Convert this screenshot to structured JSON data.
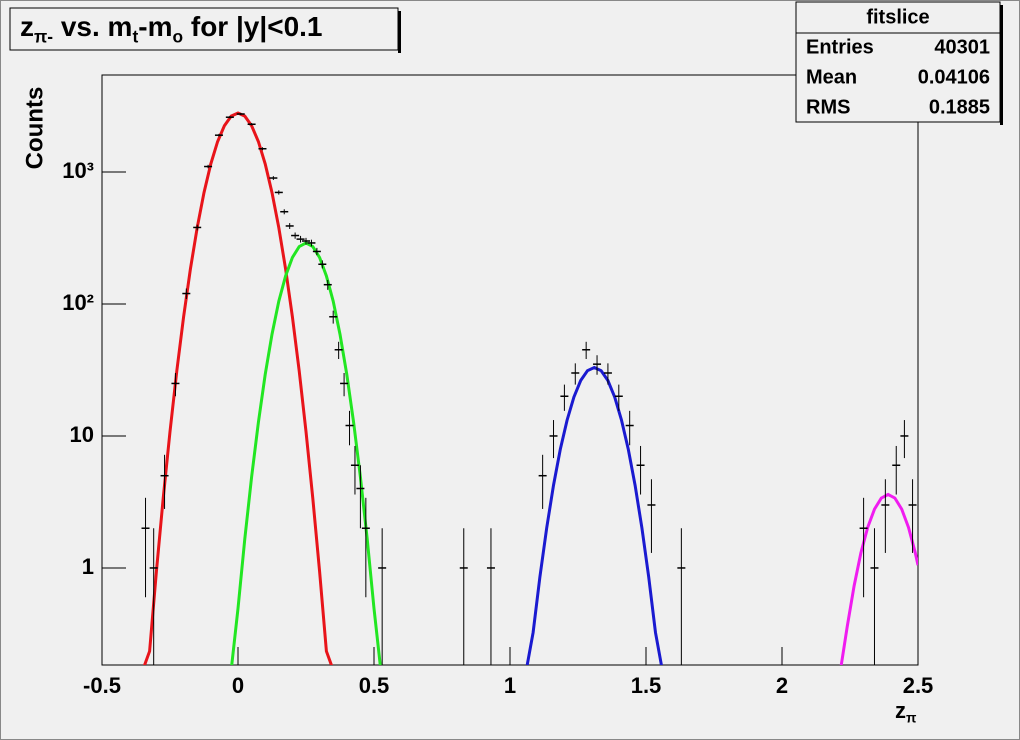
{
  "chart_data": {
    "type": "scatter",
    "title": [
      {
        "text": "z"
      },
      {
        "text": "π-",
        "sub": true
      },
      {
        "text": " vs. m"
      },
      {
        "text": "t",
        "sub": true
      },
      {
        "text": "-m"
      },
      {
        "text": "o",
        "sub": true
      },
      {
        "text": " for |y|<0.1"
      }
    ],
    "x_label": [
      {
        "text": "z"
      },
      {
        "text": "π",
        "sub": true
      }
    ],
    "y_label": "Counts",
    "log_y": true,
    "xlim": [
      -0.5,
      2.5
    ],
    "xticks": [
      -0.5,
      0,
      0.5,
      1,
      1.5,
      2,
      2.5
    ],
    "ylim": [
      0.184,
      5430
    ],
    "yticks": [
      1,
      10,
      {
        "value": 100,
        "label": "10²"
      },
      {
        "value": 1000,
        "label": "10³"
      }
    ],
    "stats": {
      "title": "fitslice",
      "rows": [
        [
          "Entries",
          "40301"
        ],
        [
          "Mean",
          "0.04106"
        ],
        [
          "RMS",
          "0.1885"
        ]
      ]
    },
    "points": {
      "color": "#000000",
      "x": [
        -0.34,
        -0.31,
        -0.27,
        -0.23,
        -0.19,
        -0.15,
        -0.11,
        -0.07,
        -0.03,
        0.01,
        0.05,
        0.09,
        0.13,
        0.15,
        0.17,
        0.19,
        0.21,
        0.23,
        0.25,
        0.27,
        0.29,
        0.31,
        0.33,
        0.35,
        0.37,
        0.39,
        0.41,
        0.43,
        0.45,
        0.47,
        0.53,
        0.83,
        0.93,
        1.12,
        1.16,
        1.2,
        1.24,
        1.28,
        1.32,
        1.36,
        1.4,
        1.44,
        1.48,
        1.52,
        1.63,
        2.3,
        2.34,
        2.38,
        2.42,
        2.45,
        2.48
      ],
      "values": [
        2,
        1,
        5,
        25,
        120,
        380,
        1100,
        1900,
        2600,
        2750,
        2300,
        1500,
        900,
        700,
        500,
        390,
        330,
        310,
        300,
        290,
        250,
        200,
        140,
        80,
        45,
        25,
        12,
        6,
        4,
        2,
        1,
        1,
        1,
        5,
        10,
        20,
        30,
        45,
        35,
        30,
        20,
        12,
        6,
        3,
        1,
        2,
        1,
        3,
        6,
        10,
        3
      ],
      "errors": [
        1.4,
        1,
        2.2,
        5,
        11,
        19,
        33,
        44,
        51,
        52,
        48,
        39,
        30,
        26,
        22,
        20,
        18,
        18,
        17,
        17,
        16,
        14,
        12,
        9,
        6.7,
        5,
        3.5,
        2.4,
        2,
        1.4,
        1,
        1,
        1,
        2.2,
        3.2,
        4.5,
        5.5,
        6.7,
        5.9,
        5.5,
        4.5,
        3.5,
        2.4,
        1.7,
        1,
        1.4,
        1,
        1.7,
        2.4,
        3.2,
        1.7
      ]
    },
    "fits": [
      {
        "color": "#e8141a",
        "x": [
          -0.35,
          -0.325,
          -0.3,
          -0.275,
          -0.25,
          -0.225,
          -0.2,
          -0.175,
          -0.15,
          -0.125,
          -0.1,
          -0.075,
          -0.05,
          -0.025,
          0,
          0.025,
          0.05,
          0.075,
          0.1,
          0.125,
          0.15,
          0.175,
          0.2,
          0.225,
          0.25,
          0.275,
          0.3,
          0.325,
          0.35
        ],
        "values": [
          0.052,
          0.234,
          0.94,
          3.37,
          10.8,
          31.1,
          80,
          184,
          379,
          698,
          1151,
          1698,
          2242,
          2649,
          2800,
          2649,
          2242,
          1698,
          1151,
          698,
          379,
          184,
          80,
          31.1,
          10.8,
          3.37,
          0.94,
          0.234,
          0.052
        ]
      },
      {
        "color": "#22e622",
        "x": [
          -0.05,
          -0.025,
          0,
          0.025,
          0.05,
          0.075,
          0.1,
          0.125,
          0.15,
          0.175,
          0.2,
          0.225,
          0.25,
          0.275,
          0.3,
          0.325,
          0.35,
          0.375,
          0.4,
          0.425,
          0.45,
          0.475,
          0.5,
          0.525,
          0.55
        ],
        "values": [
          0.03,
          0.129,
          0.493,
          1.66,
          4.89,
          12.7,
          29.2,
          58.9,
          105,
          163,
          225,
          272,
          290,
          272,
          225,
          163,
          105,
          58.9,
          29.2,
          12.7,
          4.89,
          1.66,
          0.493,
          0.129,
          0.03
        ]
      },
      {
        "color": "#1a1ad0",
        "x": [
          1.035,
          1.06,
          1.085,
          1.11,
          1.135,
          1.16,
          1.185,
          1.21,
          1.235,
          1.26,
          1.285,
          1.31,
          1.335,
          1.36,
          1.385,
          1.41,
          1.435,
          1.46,
          1.485,
          1.51,
          1.535,
          1.56,
          1.585
        ],
        "values": [
          0.033,
          0.11,
          0.324,
          0.855,
          2.01,
          4.23,
          7.92,
          13.2,
          19.7,
          26.3,
          31.2,
          33,
          31.2,
          26.3,
          19.7,
          13.2,
          7.92,
          4.23,
          2.01,
          0.855,
          0.324,
          0.11,
          0.033
        ]
      },
      {
        "color": "#f01cf0",
        "x": [
          2.19,
          2.215,
          2.24,
          2.265,
          2.29,
          2.315,
          2.34,
          2.365,
          2.39,
          2.415,
          2.44,
          2.465,
          2.49,
          2.5
        ],
        "values": [
          0.061,
          0.158,
          0.363,
          0.731,
          1.3,
          2.03,
          2.79,
          3.38,
          3.6,
          3.38,
          2.79,
          2.03,
          1.3,
          1.05
        ]
      }
    ]
  }
}
